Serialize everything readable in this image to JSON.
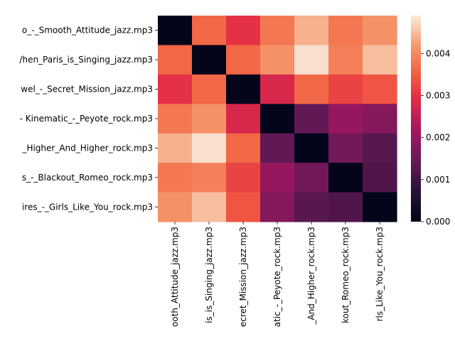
{
  "chart_data": {
    "type": "heatmap",
    "title": "",
    "xlabel": "",
    "ylabel": "",
    "colormap": "rocket",
    "row_labels": [
      "o_-_Smooth_Attitude_jazz.mp3",
      "/hen_Paris_is_Singing_jazz.mp3",
      "wel_-_Secret_Mission_jazz.mp3",
      "- Kinematic_-_Peyote_rock.mp3",
      "_Higher_And_Higher_rock.mp3",
      "s_-_Blackout_Romeo_rock.mp3",
      "ires_-_Girls_Like_You_rock.mp3"
    ],
    "col_labels": [
      "ooth_Attitude_jazz.mp3",
      "is_is_Singing_jazz.mp3",
      "ecret_Mission_jazz.mp3",
      "atic_-_Peyote_rock.mp3",
      "_And_Higher_rock.mp3",
      "kout_Romeo_rock.mp3",
      "rls_Like_You_rock.mp3"
    ],
    "values": [
      [
        0.0,
        0.0036,
        0.003,
        0.0038,
        0.0044,
        0.0038,
        0.0041
      ],
      [
        0.0036,
        0.0,
        0.0036,
        0.0041,
        0.0048,
        0.0039,
        0.0045
      ],
      [
        0.003,
        0.0036,
        0.0,
        0.0028,
        0.0036,
        0.0032,
        0.0034
      ],
      [
        0.0038,
        0.0041,
        0.0028,
        0.0,
        0.0014,
        0.002,
        0.0018
      ],
      [
        0.0044,
        0.0048,
        0.0036,
        0.0014,
        0.0,
        0.0016,
        0.0013
      ],
      [
        0.0038,
        0.0039,
        0.0032,
        0.002,
        0.0016,
        0.0,
        0.0012
      ],
      [
        0.0041,
        0.0045,
        0.0034,
        0.0018,
        0.0013,
        0.0012,
        0.0
      ]
    ],
    "colorbar": {
      "vmin": 0,
      "vmax": 0.0049,
      "ticks": [
        0,
        0.001,
        0.002,
        0.003,
        0.004
      ],
      "tick_labels": [
        "0.000",
        "0.001",
        "0.002",
        "0.003",
        "0.004"
      ]
    }
  }
}
